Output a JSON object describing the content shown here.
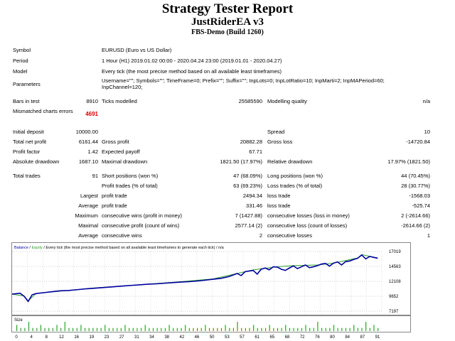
{
  "header": {
    "title": "Strategy Tester Report",
    "ea_name": "JustRiderEA v3",
    "server": "FBS-Demo (Build 1260)"
  },
  "rows": {
    "symbol": {
      "label": "Symbol",
      "value": "EURUSD (Euro vs US Dollar)"
    },
    "period": {
      "label": "Period",
      "value": "1 Hour (H1) 2019.01.02 00:00 - 2020.04.24 23:00 (2019.01.01 - 2020.04.27)"
    },
    "model": {
      "label": "Model",
      "value": "Every tick (the most precise method based on all available least timeframes)"
    },
    "parameters": {
      "label": "Parameters",
      "value": "Username=\"\"; Symbols=\"\"; TimeFrame=0; Prefix=\"\"; Suffix=\"\"; InpLots=0; InpLotRatio=10; InpMarti=2; InpMAPeriod=60; InpChannel=120;"
    },
    "bars": {
      "label": "Bars in test",
      "value": "8910",
      "ticks_label": "Ticks modelled",
      "ticks_value": "25585590",
      "quality_label": "Modelling quality",
      "quality_value": "n/a"
    },
    "mismatch": {
      "label": "Mismatched charts errors",
      "value": "4691"
    },
    "deposit": {
      "label": "Initial deposit",
      "value": "10000.00",
      "spread_label": "Spread",
      "spread_value": "10"
    },
    "net": {
      "label": "Total net profit",
      "value": "6161.44",
      "gp_label": "Gross profit",
      "gp_value": "20882.28",
      "gl_label": "Gross loss",
      "gl_value": "-14720.84"
    },
    "pf": {
      "label": "Profit factor",
      "value": "1.42",
      "ep_label": "Expected payoff",
      "ep_value": "67.71"
    },
    "dd": {
      "label": "Absolute drawdown",
      "value": "1687.10",
      "md_label": "Maximal drawdown",
      "md_value": "1821.50 (17.97%)",
      "rd_label": "Relative drawdown",
      "rd_value": "17.97% (1821.50)"
    },
    "trades": {
      "label": "Total trades",
      "value": "91",
      "sp_label": "Short positions (won %)",
      "sp_value": "47 (68.09%)",
      "lp_label": "Long positions (won %)",
      "lp_value": "44 (70.45%)"
    },
    "pt": {
      "p_label": "Profit trades (% of total)",
      "p_value": "63 (69.23%)",
      "l_label": "Loss trades (% of total)",
      "l_value": "28 (30.77%)"
    },
    "largest": {
      "label": "Largest",
      "p_label": "profit trade",
      "p_value": "2494.34",
      "l_label": "loss trade",
      "l_value": "-1568.03"
    },
    "average": {
      "label": "Average",
      "p_label": "profit trade",
      "p_value": "331.46",
      "l_label": "loss trade",
      "l_value": "-525.74"
    },
    "maximum": {
      "label": "Maximum",
      "p_label": "consecutive wins (profit in money)",
      "p_value": "7 (1427.88)",
      "l_label": "consecutive losses (loss in money)",
      "l_value": "2 (-2614.66)"
    },
    "maximal": {
      "label": "Maximal",
      "p_label": "consecutive profit (count of wins)",
      "p_value": "2577.14 (2)",
      "l_label": "consecutive loss (count of losses)",
      "l_value": "-2614.66 (2)"
    },
    "avg2": {
      "label": "Average",
      "p_label": "consecutive wins",
      "p_value": "2",
      "l_label": "consecutive losses",
      "l_value": "1"
    }
  },
  "chart_data": [
    {
      "type": "line",
      "legend_balance": "Balance",
      "legend_equity": "Equity",
      "legend_text": " / Every tick (the most precise method based on all available least timeframes to generate each tick) / n/a",
      "balance_color": "#0000a0",
      "equity_color": "#2ca02c",
      "yticks": [
        "17019",
        "14563",
        "12108",
        "9652",
        "7197"
      ],
      "ylim": [
        7197,
        17019
      ],
      "xlim": [
        0,
        92
      ],
      "balance": [
        [
          0,
          10000
        ],
        [
          2,
          10150
        ],
        [
          3,
          9650
        ],
        [
          4,
          8800
        ],
        [
          5,
          9900
        ],
        [
          6,
          10100
        ],
        [
          8,
          10250
        ],
        [
          10,
          10400
        ],
        [
          12,
          10550
        ],
        [
          14,
          10600
        ],
        [
          16,
          10720
        ],
        [
          18,
          10850
        ],
        [
          20,
          10950
        ],
        [
          22,
          11050
        ],
        [
          24,
          11150
        ],
        [
          26,
          11250
        ],
        [
          28,
          11350
        ],
        [
          30,
          11450
        ],
        [
          32,
          11550
        ],
        [
          34,
          11650
        ],
        [
          36,
          11700
        ],
        [
          38,
          11800
        ],
        [
          40,
          11900
        ],
        [
          42,
          11980
        ],
        [
          44,
          12050
        ],
        [
          46,
          12150
        ],
        [
          48,
          12300
        ],
        [
          50,
          12450
        ],
        [
          52,
          12600
        ],
        [
          54,
          12900
        ],
        [
          56,
          13400
        ],
        [
          57,
          13050
        ],
        [
          58,
          13700
        ],
        [
          60,
          13900
        ],
        [
          61,
          13300
        ],
        [
          62,
          14100
        ],
        [
          63,
          14300
        ],
        [
          64,
          14000
        ],
        [
          65,
          14500
        ],
        [
          66,
          14450
        ],
        [
          67,
          14100
        ],
        [
          68,
          13900
        ],
        [
          69,
          14300
        ],
        [
          70,
          14650
        ],
        [
          71,
          14200
        ],
        [
          72,
          14500
        ],
        [
          73,
          14800
        ],
        [
          74,
          14350
        ],
        [
          75,
          14500
        ],
        [
          76,
          14700
        ],
        [
          77,
          14950
        ],
        [
          78,
          15050
        ],
        [
          79,
          14600
        ],
        [
          80,
          15100
        ],
        [
          81,
          15300
        ],
        [
          82,
          14800
        ],
        [
          83,
          15350
        ],
        [
          84,
          15450
        ],
        [
          85,
          15700
        ],
        [
          86,
          15900
        ],
        [
          87,
          16450
        ],
        [
          88,
          15800
        ],
        [
          89,
          16200
        ],
        [
          90,
          16050
        ],
        [
          91,
          15900
        ]
      ],
      "equity": [
        [
          0,
          10000
        ],
        [
          3,
          9700
        ],
        [
          4,
          8900
        ],
        [
          6,
          10100
        ],
        [
          20,
          11000
        ],
        [
          40,
          11950
        ],
        [
          50,
          12500
        ],
        [
          56,
          13400
        ],
        [
          60,
          14000
        ],
        [
          66,
          14500
        ],
        [
          70,
          14700
        ],
        [
          76,
          14800
        ],
        [
          80,
          15100
        ],
        [
          86,
          15950
        ],
        [
          87,
          16500
        ],
        [
          91,
          15950
        ]
      ]
    },
    {
      "type": "bar",
      "label": "Size",
      "xticks": [
        "0",
        "4",
        "8",
        "12",
        "16",
        "19",
        "23",
        "27",
        "31",
        "34",
        "38",
        "42",
        "46",
        "50",
        "53",
        "57",
        "61",
        "65",
        "68",
        "72",
        "76",
        "80",
        "84",
        "87",
        "91"
      ],
      "values": [
        2,
        1,
        1,
        3,
        1,
        1,
        2,
        1,
        1,
        1,
        2,
        1,
        3,
        1,
        1,
        1,
        2,
        1,
        1,
        1,
        1,
        1,
        2,
        1,
        1,
        1,
        1,
        2,
        1,
        1,
        1,
        1,
        2,
        1,
        1,
        1,
        1,
        1,
        2,
        1,
        1,
        1,
        2,
        1,
        1,
        1,
        1,
        2,
        1,
        1,
        1,
        1,
        2,
        1,
        1,
        3,
        1,
        1,
        1,
        2,
        1,
        1,
        1,
        2,
        1,
        1,
        1,
        2,
        1,
        1,
        1,
        1,
        2,
        1,
        1,
        3,
        1,
        1,
        1,
        2,
        1,
        1,
        1,
        1,
        2,
        1,
        1,
        3,
        1,
        2,
        1
      ]
    }
  ]
}
